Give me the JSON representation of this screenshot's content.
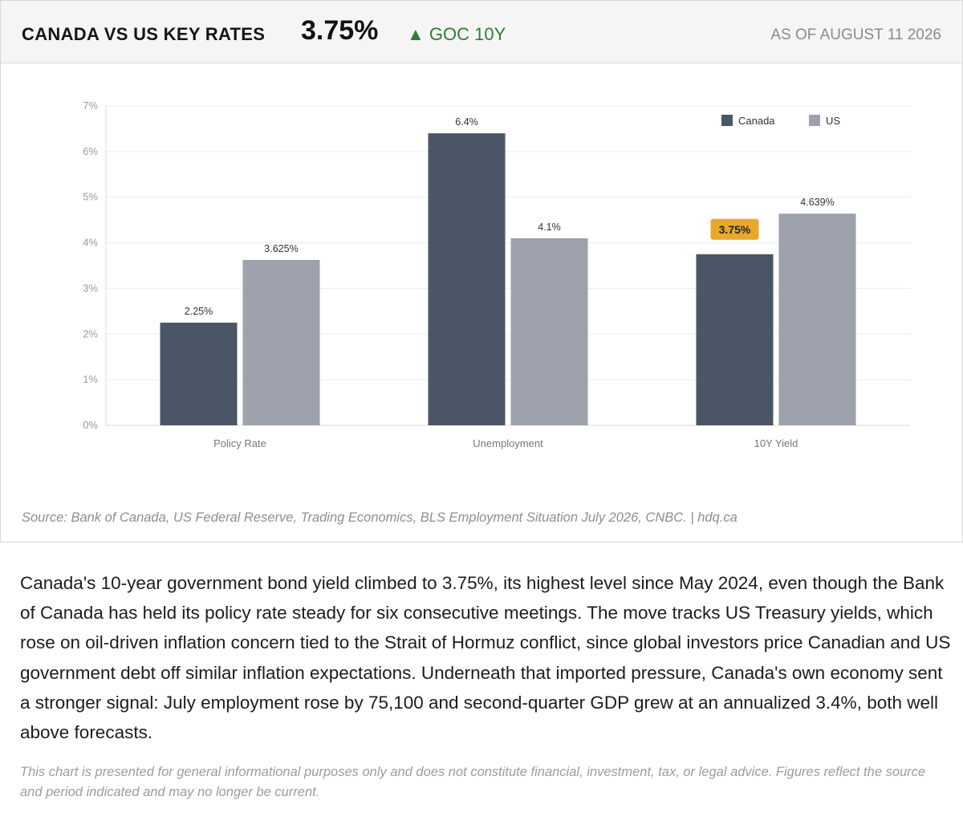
{
  "header": {
    "title": "CANADA VS US KEY RATES",
    "value": "3.75%",
    "change_arrow": "▲",
    "change_label": "GOC 10Y",
    "as_of": "AS OF AUGUST 11 2026"
  },
  "colors": {
    "canada": "#4a5565",
    "us": "#9ca1ab",
    "highlight": "#e8a92a",
    "up": "#2e7d32"
  },
  "chart_data": {
    "type": "bar",
    "categories": [
      "Policy Rate",
      "Unemployment",
      "10Y Yield"
    ],
    "series": [
      {
        "name": "Canada",
        "values": [
          2.25,
          6.4,
          3.75
        ],
        "labels": [
          "2.25%",
          "6.4%",
          "3.75%"
        ]
      },
      {
        "name": "US",
        "values": [
          3.625,
          4.1,
          4.639
        ],
        "labels": [
          "3.625%",
          "4.1%",
          "4.639%"
        ]
      }
    ],
    "highlight": {
      "series": 0,
      "category": 2,
      "label": "3.75%"
    },
    "ylim": [
      0,
      7
    ],
    "yticks": [
      0,
      1,
      2,
      3,
      4,
      5,
      6,
      7
    ],
    "ytick_labels": [
      "0%",
      "1%",
      "2%",
      "3%",
      "4%",
      "5%",
      "6%",
      "7%"
    ],
    "grid": true,
    "legend_position": "top-right"
  },
  "source": "Source: Bank of Canada, US Federal Reserve, Trading Economics, BLS Employment Situation July 2026, CNBC.  |  hdq.ca",
  "body": "Canada's 10-year government bond yield climbed to 3.75%, its highest level since May 2024, even though the Bank of Canada has held its policy rate steady for six consecutive meetings. The move tracks US Treasury yields, which rose on oil-driven inflation concern tied to the Strait of Hormuz conflict, since global investors price Canadian and US government debt off similar inflation expectations. Underneath that imported pressure, Canada's own economy sent a stronger signal: July employment rose by 75,100 and second-quarter GDP grew at an annualized 3.4%, both well above forecasts.",
  "disclaimer": "This chart is presented for general informational purposes only and does not constitute financial, investment, tax, or legal advice. Figures reflect the source and period indicated and may no longer be current."
}
